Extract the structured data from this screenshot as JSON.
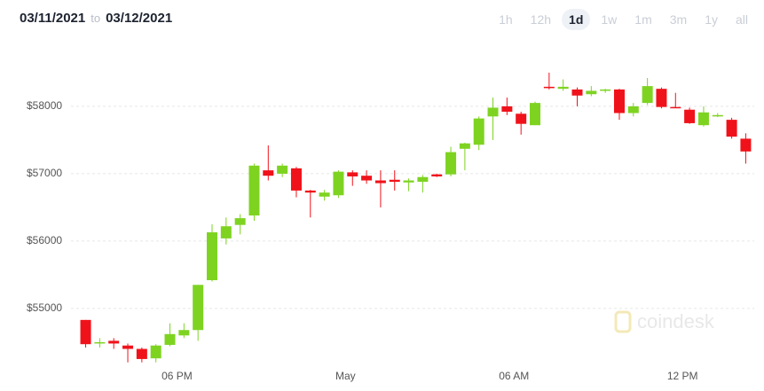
{
  "header": {
    "from": "03/11/2021",
    "to_word": "to",
    "to": "03/12/2021",
    "ranges": [
      "1h",
      "12h",
      "1d",
      "1w",
      "1m",
      "3m",
      "1y",
      "all"
    ],
    "selected": "1d"
  },
  "chart_data": {
    "type": "candlestick",
    "watermark": "coindesk",
    "up_color": "#7ed321",
    "down_color": "#f0121a",
    "grid": true,
    "x": [
      14.75,
      15.25,
      15.75,
      16.25,
      16.75,
      17.25,
      17.75,
      18.25,
      18.75,
      19.25,
      19.75,
      20.25,
      20.75,
      21.25,
      21.75,
      22.25,
      22.75,
      23.25,
      23.75,
      24.25,
      24.75,
      25.25,
      25.75,
      26.25,
      26.75,
      27.25,
      27.75,
      28.25,
      28.75,
      29.25,
      29.75,
      30.25,
      30.75,
      31.25,
      31.75,
      32.25,
      32.75,
      33.25,
      33.75,
      34.25,
      34.75,
      35.25,
      35.75,
      36.25,
      36.75,
      37.25,
      37.75,
      38.25
    ],
    "open": [
      54830,
      54480,
      54520,
      54450,
      54400,
      54260,
      54460,
      54600,
      54680,
      55420,
      56040,
      56240,
      56380,
      57050,
      57000,
      57080,
      56750,
      56660,
      56680,
      57020,
      56970,
      56900,
      56910,
      56870,
      56880,
      56990,
      56990,
      57370,
      57430,
      57850,
      58000,
      57890,
      57720,
      58290,
      58260,
      58250,
      58180,
      58230,
      58250,
      57900,
      58050,
      58260,
      57990,
      57950,
      57720,
      57850,
      57800,
      57520
    ],
    "close": [
      54470,
      54500,
      54480,
      54400,
      54250,
      54450,
      54620,
      54680,
      55350,
      56130,
      56220,
      56340,
      57120,
      56970,
      57120,
      56750,
      56720,
      56720,
      57030,
      56960,
      56900,
      56860,
      56880,
      56900,
      56950,
      56960,
      57320,
      57450,
      57820,
      57980,
      57920,
      57740,
      58050,
      58270,
      58290,
      58160,
      58230,
      58250,
      57900,
      58000,
      58300,
      57990,
      57980,
      57750,
      57910,
      57870,
      57550,
      57330
    ],
    "high": [
      54830,
      54560,
      54560,
      54480,
      54420,
      54470,
      54780,
      54780,
      55350,
      56250,
      56350,
      56400,
      57150,
      57420,
      57150,
      57100,
      56760,
      56760,
      57050,
      57050,
      57050,
      57050,
      57050,
      56930,
      56980,
      57000,
      57400,
      57460,
      57850,
      58130,
      58130,
      57920,
      58070,
      58500,
      58400,
      58280,
      58300,
      58260,
      58260,
      58050,
      58420,
      58280,
      58200,
      57980,
      58000,
      57900,
      57830,
      57600
    ],
    "low": [
      54420,
      54420,
      54400,
      54200,
      54200,
      54200,
      54440,
      54560,
      54520,
      55400,
      55950,
      56100,
      56300,
      56900,
      56950,
      56650,
      56350,
      56600,
      56640,
      56820,
      56850,
      56500,
      56750,
      56740,
      56720,
      56950,
      56960,
      57050,
      57350,
      57500,
      57870,
      57580,
      57720,
      58250,
      58230,
      58000,
      58150,
      58200,
      57800,
      57850,
      58020,
      57970,
      57980,
      57740,
      57700,
      57840,
      57520,
      57150
    ],
    "xlim": [
      11.7,
      38.9
    ],
    "xticks": [
      {
        "value": 18,
        "label": "06 PM"
      },
      {
        "value": 24,
        "label": "May"
      },
      {
        "value": 30,
        "label": "06 AM"
      },
      {
        "value": 36,
        "label": "12 PM"
      }
    ],
    "ylim": [
      53920,
      58920
    ],
    "yticks": [
      {
        "value": 55000,
        "label": "$55000"
      },
      {
        "value": 56000,
        "label": "$56000"
      },
      {
        "value": 57000,
        "label": "$57000"
      },
      {
        "value": 58000,
        "label": "$58000"
      }
    ]
  }
}
